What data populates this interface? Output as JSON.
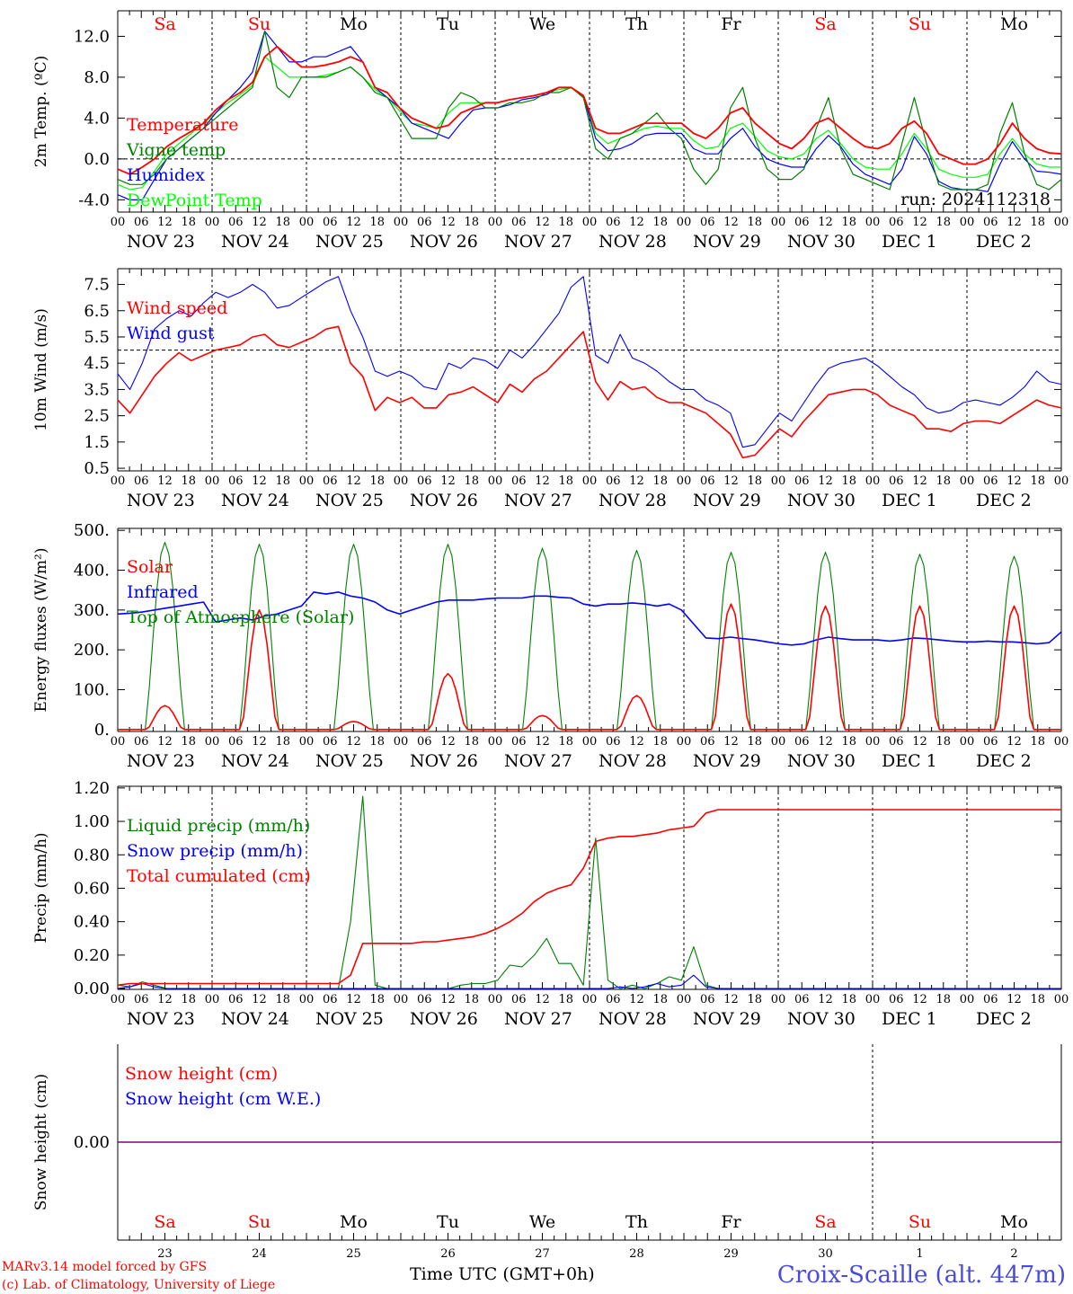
{
  "footer": {
    "credit_line1": "MARv3.14 model forced by GFS",
    "credit_line2": "(c) Lab. of Climatology, University of Liege",
    "time_axis_label": "Time UTC (GMT+0h)",
    "station": "Croix-Scaille (alt. 447m)"
  },
  "weekdays": [
    "Sa",
    "Su",
    "Mo",
    "Tu",
    "We",
    "Th",
    "Fr",
    "Sa",
    "Su",
    "Mo"
  ],
  "weekend_flags": [
    true,
    true,
    false,
    false,
    false,
    false,
    false,
    true,
    true,
    false
  ],
  "date_labels": [
    "NOV 23",
    "NOV 24",
    "NOV 25",
    "NOV 26",
    "NOV 27",
    "NOV 28",
    "NOV 29",
    "NOV 30",
    "DEC  1",
    "DEC  2"
  ],
  "day_numbers": [
    "23",
    "24",
    "25",
    "26",
    "27",
    "28",
    "29",
    "30",
    "1",
    "2"
  ],
  "hour_ticks": [
    "00",
    "06",
    "12",
    "18"
  ],
  "colors": {
    "red": "#ff0000",
    "green": "#008000",
    "blue": "#0000ff",
    "lightgreen": "#00ff00",
    "purple": "#800080"
  },
  "chart_data": [
    {
      "type": "line",
      "ylabel": "2m Temp. (ºC)",
      "ylim": [
        -5.2,
        14.5
      ],
      "yticks": [
        "12.0",
        "8.0",
        "4.0",
        "0.0",
        "-4.0"
      ],
      "ytick_values": [
        12,
        8,
        4,
        0,
        -4
      ],
      "ref_line": 0,
      "annotation": "run: 2024112318",
      "x_unit": "hours from 2024-11-23 00 UTC, 3-hourly",
      "series": [
        {
          "name": "Temperature",
          "color": "red",
          "values": [
            -1,
            -1.5,
            -0.8,
            0,
            1.2,
            2,
            2.7,
            3.5,
            4.8,
            5.8,
            6.5,
            7.5,
            10,
            11,
            10,
            9,
            9,
            9.2,
            9.5,
            10,
            9.5,
            7,
            6.5,
            5,
            4,
            3.5,
            3,
            3.3,
            4.5,
            5,
            5.5,
            5.5,
            5.8,
            6,
            6.2,
            6.5,
            7,
            7,
            6.2,
            3,
            2.5,
            2.5,
            3,
            3.5,
            3.5,
            3.5,
            3.5,
            2.5,
            2,
            3,
            4.5,
            5,
            3.5,
            2.5,
            1.5,
            1,
            2,
            3.5,
            4,
            3,
            2,
            1.2,
            1,
            1.5,
            3,
            3.7,
            2.5,
            0.5,
            0,
            -0.5,
            -0.5,
            0,
            1.5,
            3.5,
            2,
            1,
            0.6,
            0.5
          ]
        },
        {
          "name": "Vigne temp",
          "color": "green",
          "values": [
            -2,
            -2.5,
            -2.5,
            -1.5,
            0,
            1,
            2,
            3,
            4,
            5,
            6,
            7,
            12.5,
            7,
            6,
            8,
            8,
            8,
            8.5,
            9,
            8,
            6.5,
            6,
            4,
            2,
            2,
            2,
            5,
            6.5,
            6,
            5,
            5,
            5.5,
            5.5,
            5.8,
            6.5,
            6.5,
            7,
            6,
            1,
            0,
            2,
            2.5,
            3.5,
            4.5,
            3,
            2,
            -1,
            -2.5,
            -1,
            5,
            7,
            2,
            -1,
            -2,
            -2,
            -1,
            3,
            6,
            1,
            -1.5,
            -2,
            -2.5,
            -3,
            1.5,
            6,
            1.5,
            -2.5,
            -3,
            -3,
            -3,
            -2.5,
            2.5,
            5.5,
            0.5,
            -2.5,
            -3,
            -2
          ]
        },
        {
          "name": "Humidex",
          "color": "blue",
          "values": [
            -3.5,
            -4,
            -4,
            -2,
            0,
            1,
            2,
            3,
            4.5,
            5.8,
            7,
            8.5,
            12.5,
            11,
            9.5,
            9.5,
            10,
            10,
            10.5,
            11,
            9.5,
            7,
            6,
            5,
            3.5,
            3,
            2.5,
            2,
            3.5,
            4.8,
            5,
            5,
            5.3,
            5.8,
            6,
            6.3,
            7,
            7,
            6.2,
            2,
            0.8,
            1,
            1.5,
            2.3,
            2.5,
            2.5,
            2.5,
            1,
            0.5,
            0.5,
            2,
            3,
            1.2,
            0,
            -0.5,
            -0.8,
            -0.8,
            1,
            2.3,
            1.2,
            -0.5,
            -1.5,
            -2,
            -2.5,
            -1,
            2.2,
            0.5,
            -2.2,
            -2.8,
            -3,
            -3,
            -3.2,
            -0.5,
            1.7,
            0,
            -1.2,
            -1.3,
            -1.5
          ]
        },
        {
          "name": "DewPoint Temp",
          "color": "lightgreen",
          "values": [
            -2.5,
            -3,
            -2.8,
            -1.2,
            0.5,
            1.5,
            2.5,
            3.5,
            4.5,
            5.5,
            6.3,
            7.2,
            10,
            9,
            8,
            8,
            8,
            8.2,
            8.5,
            9,
            8,
            6.8,
            6,
            4.7,
            3.5,
            3.3,
            3,
            4.5,
            5.5,
            5.5,
            5.5,
            5.5,
            5.8,
            6,
            6.2,
            6.5,
            6.8,
            7,
            6,
            2.5,
            1.5,
            2,
            2.5,
            3,
            3.2,
            3,
            3,
            1.8,
            1,
            1.2,
            3,
            3.5,
            2.2,
            0.8,
            0.2,
            0,
            0.5,
            2,
            2.8,
            1.5,
            0,
            -0.8,
            -1,
            -1,
            0.5,
            2.5,
            1,
            -1,
            -1.5,
            -1.8,
            -1.8,
            -1.5,
            0.5,
            2,
            0.5,
            -0.5,
            -0.8,
            -0.8
          ]
        }
      ]
    },
    {
      "type": "line",
      "ylabel": "10m Wind (m/s)",
      "ylim": [
        0.4,
        8.1
      ],
      "yticks": [
        "7.5",
        "6.5",
        "5.5",
        "4.5",
        "3.5",
        "2.5",
        "1.5",
        "0.5"
      ],
      "ytick_values": [
        7.5,
        6.5,
        5.5,
        4.5,
        3.5,
        2.5,
        1.5,
        0.5
      ],
      "ref_line": 5.0,
      "x_unit": "hours from 2024-11-23 00 UTC, 3-hourly",
      "series": [
        {
          "name": "Wind speed",
          "color": "red",
          "values": [
            3.1,
            2.6,
            3.3,
            4,
            4.5,
            4.9,
            4.6,
            4.8,
            5.0,
            5.1,
            5.2,
            5.5,
            5.6,
            5.2,
            5.1,
            5.3,
            5.5,
            5.8,
            5.9,
            4.5,
            4.0,
            2.7,
            3.2,
            3.0,
            3.2,
            2.8,
            2.8,
            3.3,
            3.4,
            3.6,
            3.3,
            3.0,
            3.7,
            3.4,
            3.9,
            4.2,
            4.7,
            5.2,
            5.7,
            3.8,
            3.1,
            3.8,
            3.5,
            3.6,
            3.2,
            3.0,
            3.0,
            2.8,
            2.6,
            2.2,
            1.8,
            0.9,
            1.0,
            1.5,
            2.0,
            1.7,
            2.3,
            2.8,
            3.3,
            3.4,
            3.5,
            3.5,
            3.3,
            2.9,
            2.7,
            2.5,
            2.0,
            2.0,
            1.9,
            2.2,
            2.3,
            2.3,
            2.2,
            2.5,
            2.8,
            3.1,
            2.9,
            2.8
          ]
        },
        {
          "name": "Wind gust",
          "color": "blue",
          "values": [
            4.1,
            3.5,
            4.5,
            5.8,
            6.2,
            6.5,
            6.3,
            6.8,
            7.2,
            7.0,
            7.2,
            7.5,
            7.2,
            6.6,
            6.7,
            7.0,
            7.3,
            7.6,
            7.8,
            6.5,
            5.5,
            4.2,
            4.0,
            4.2,
            4.0,
            3.6,
            3.5,
            4.5,
            4.3,
            4.7,
            4.6,
            4.3,
            5.0,
            4.7,
            5.2,
            5.8,
            6.4,
            7.4,
            7.8,
            4.8,
            4.5,
            5.6,
            4.7,
            4.5,
            4.2,
            3.8,
            3.5,
            3.5,
            3.1,
            2.9,
            2.6,
            1.3,
            1.4,
            2.0,
            2.6,
            2.3,
            3.0,
            3.7,
            4.3,
            4.5,
            4.6,
            4.7,
            4.4,
            4.0,
            3.6,
            3.3,
            2.8,
            2.6,
            2.7,
            3.0,
            3.1,
            3.0,
            2.9,
            3.2,
            3.6,
            4.2,
            3.8,
            3.7
          ]
        }
      ]
    },
    {
      "type": "line",
      "ylabel": "Energy fluxes (W/m²)",
      "ylim": [
        -5,
        505
      ],
      "yticks": [
        "500.",
        "400.",
        "300.",
        "200.",
        "100.",
        "0."
      ],
      "ytick_values": [
        500,
        400,
        300,
        200,
        100,
        0
      ],
      "x_unit": "hours from 2024-11-23 00 UTC",
      "series": [
        {
          "name": "Solar",
          "color": "red",
          "day_peaks": [
            60,
            300,
            20,
            140,
            35,
            85,
            315,
            310,
            310,
            310
          ]
        },
        {
          "name": "Infrared",
          "color": "blue",
          "values": [
            290,
            292,
            295,
            300,
            305,
            310,
            315,
            320,
            270,
            275,
            280,
            275,
            285,
            290,
            300,
            310,
            345,
            340,
            345,
            335,
            330,
            320,
            300,
            290,
            300,
            310,
            320,
            325,
            325,
            325,
            328,
            330,
            330,
            330,
            335,
            335,
            332,
            330,
            315,
            310,
            315,
            315,
            318,
            315,
            310,
            315,
            300,
            265,
            230,
            228,
            232,
            228,
            225,
            220,
            215,
            212,
            215,
            225,
            232,
            228,
            225,
            225,
            225,
            222,
            225,
            230,
            228,
            225,
            222,
            220,
            220,
            222,
            220,
            220,
            218,
            215,
            218,
            245
          ]
        },
        {
          "name": "Top of Atmosphere (Solar)",
          "color": "green",
          "day_peaks": [
            470,
            465,
            465,
            465,
            455,
            450,
            445,
            445,
            440,
            435
          ]
        }
      ]
    },
    {
      "type": "line",
      "ylabel": "Precip (mm/h)",
      "ylim": [
        -0.005,
        1.21
      ],
      "yticks": [
        "1.20",
        "1.00",
        "0.80",
        "0.60",
        "0.40",
        "0.20",
        "0.00"
      ],
      "ytick_values": [
        1.2,
        1.0,
        0.8,
        0.6,
        0.4,
        0.2,
        0.0
      ],
      "x_unit": "hours from 2024-11-23 00 UTC, 3-hourly",
      "series": [
        {
          "name": "Liquid precip (mm/h)",
          "color": "green",
          "values": [
            0.02,
            0.01,
            0.04,
            0.02,
            0,
            0,
            0,
            0,
            0,
            0,
            0,
            0,
            0,
            0,
            0,
            0,
            0,
            0,
            0,
            0.4,
            1.15,
            0.02,
            0,
            0,
            0,
            0,
            0,
            0,
            0.02,
            0.03,
            0.03,
            0.05,
            0.14,
            0.13,
            0.2,
            0.3,
            0.15,
            0.15,
            0.02,
            0.9,
            0.05,
            0,
            0.02,
            0,
            0.03,
            0.07,
            0.05,
            0.25,
            0.02,
            0,
            0,
            0,
            0,
            0,
            0,
            0,
            0,
            0,
            0,
            0,
            0,
            0,
            0,
            0,
            0,
            0,
            0,
            0,
            0,
            0,
            0,
            0,
            0,
            0,
            0,
            0,
            0,
            0
          ]
        },
        {
          "name": "Snow precip (mm/h)",
          "color": "blue",
          "values": [
            0,
            0.01,
            0.03,
            0.01,
            0,
            0,
            0,
            0,
            0,
            0,
            0,
            0,
            0,
            0,
            0,
            0,
            0,
            0,
            0,
            0,
            0,
            0,
            0,
            0,
            0,
            0,
            0,
            0,
            0,
            0,
            0,
            0,
            0,
            0,
            0,
            0,
            0,
            0,
            0,
            0,
            0,
            0.01,
            0,
            0.01,
            0.03,
            0.01,
            0.02,
            0.08,
            0.01,
            0,
            0,
            0,
            0,
            0,
            0,
            0,
            0,
            0,
            0,
            0,
            0,
            0,
            0,
            0,
            0,
            0,
            0,
            0,
            0,
            0,
            0,
            0,
            0,
            0,
            0,
            0,
            0,
            0
          ]
        },
        {
          "name": "Total cumulated (cm)",
          "color": "red",
          "values": [
            0.02,
            0.03,
            0.03,
            0.03,
            0.03,
            0.03,
            0.03,
            0.03,
            0.03,
            0.03,
            0.03,
            0.03,
            0.03,
            0.03,
            0.03,
            0.03,
            0.03,
            0.03,
            0.03,
            0.08,
            0.27,
            0.27,
            0.27,
            0.27,
            0.27,
            0.28,
            0.28,
            0.29,
            0.3,
            0.31,
            0.33,
            0.36,
            0.4,
            0.45,
            0.52,
            0.57,
            0.6,
            0.62,
            0.72,
            0.88,
            0.9,
            0.91,
            0.91,
            0.92,
            0.93,
            0.95,
            0.96,
            0.97,
            1.05,
            1.07,
            1.07,
            1.07,
            1.07,
            1.07,
            1.07,
            1.07,
            1.07,
            1.07,
            1.07,
            1.07,
            1.07,
            1.07,
            1.07,
            1.07,
            1.07,
            1.07,
            1.07,
            1.07,
            1.07,
            1.07,
            1.07,
            1.07,
            1.07,
            1.07,
            1.07,
            1.07,
            1.07,
            1.07
          ]
        }
      ]
    },
    {
      "type": "line",
      "ylabel": "Snow height (cm)",
      "ylim": [
        -1,
        1
      ],
      "yticks": [
        "0.00"
      ],
      "ytick_values": [
        0
      ],
      "series": [
        {
          "name": "Snow height (cm)",
          "color": "red",
          "values": [
            0,
            0
          ]
        },
        {
          "name": "Snow height (cm W.E.)",
          "color": "blue",
          "values": [
            0,
            0
          ]
        }
      ]
    }
  ]
}
